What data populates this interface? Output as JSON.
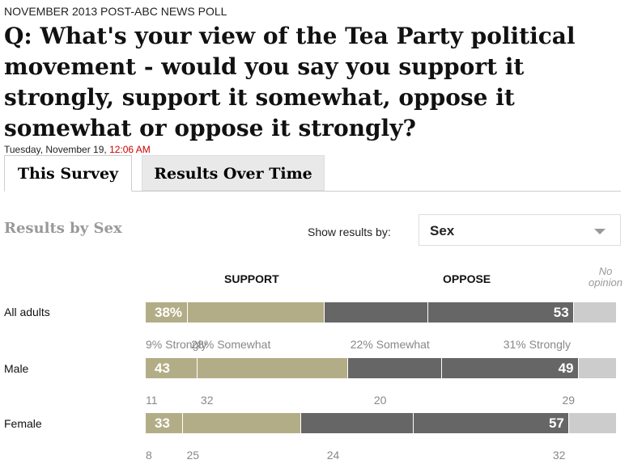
{
  "kicker": "NOVEMBER 2013 POST-ABC NEWS POLL",
  "question": "Q: What's your view of the Tea Party political movement - would you say you support it strongly, support it somewhat, oppose it somewhat or oppose it strongly?",
  "dateline": {
    "date": "Tuesday, November 19, ",
    "time": "12:06 AM"
  },
  "tabs": [
    "This Survey",
    "Results Over Time"
  ],
  "results_title": "Results by Sex",
  "filter": {
    "label": "Show results by:",
    "value": "Sex"
  },
  "colors": {
    "support": "#b3ad87",
    "oppose": "#666666",
    "no_opinion": "#cccccc",
    "time": "#cc0000"
  },
  "chart_data": {
    "type": "bar",
    "stacked": true,
    "headers": {
      "support": "SUPPORT",
      "oppose": "OPPOSE",
      "no_opinion": "No opinion"
    },
    "categories": [
      "All adults",
      "Male",
      "Female"
    ],
    "series": [
      {
        "name": "Strongly support",
        "values": [
          9,
          11,
          8
        ]
      },
      {
        "name": "Somewhat support",
        "values": [
          28,
          32,
          25
        ]
      },
      {
        "name": "Somewhat oppose",
        "values": [
          22,
          20,
          24
        ]
      },
      {
        "name": "Strongly oppose",
        "values": [
          31,
          29,
          32
        ]
      },
      {
        "name": "No opinion",
        "values": [
          9,
          8,
          11
        ]
      }
    ],
    "support_totals": [
      38,
      43,
      33
    ],
    "oppose_totals": [
      53,
      49,
      57
    ],
    "support_total_labels": [
      "38%",
      "43",
      "33"
    ],
    "oppose_total_labels": [
      "53",
      "49",
      "57"
    ],
    "sub_labels": [
      [
        "9% Strongly",
        "28% Somewhat",
        "22% Somewhat",
        "31% Strongly"
      ],
      [
        "11",
        "32",
        "20",
        "29"
      ],
      [
        "8",
        "25",
        "24",
        "32"
      ]
    ],
    "xlim": [
      0,
      100
    ]
  }
}
